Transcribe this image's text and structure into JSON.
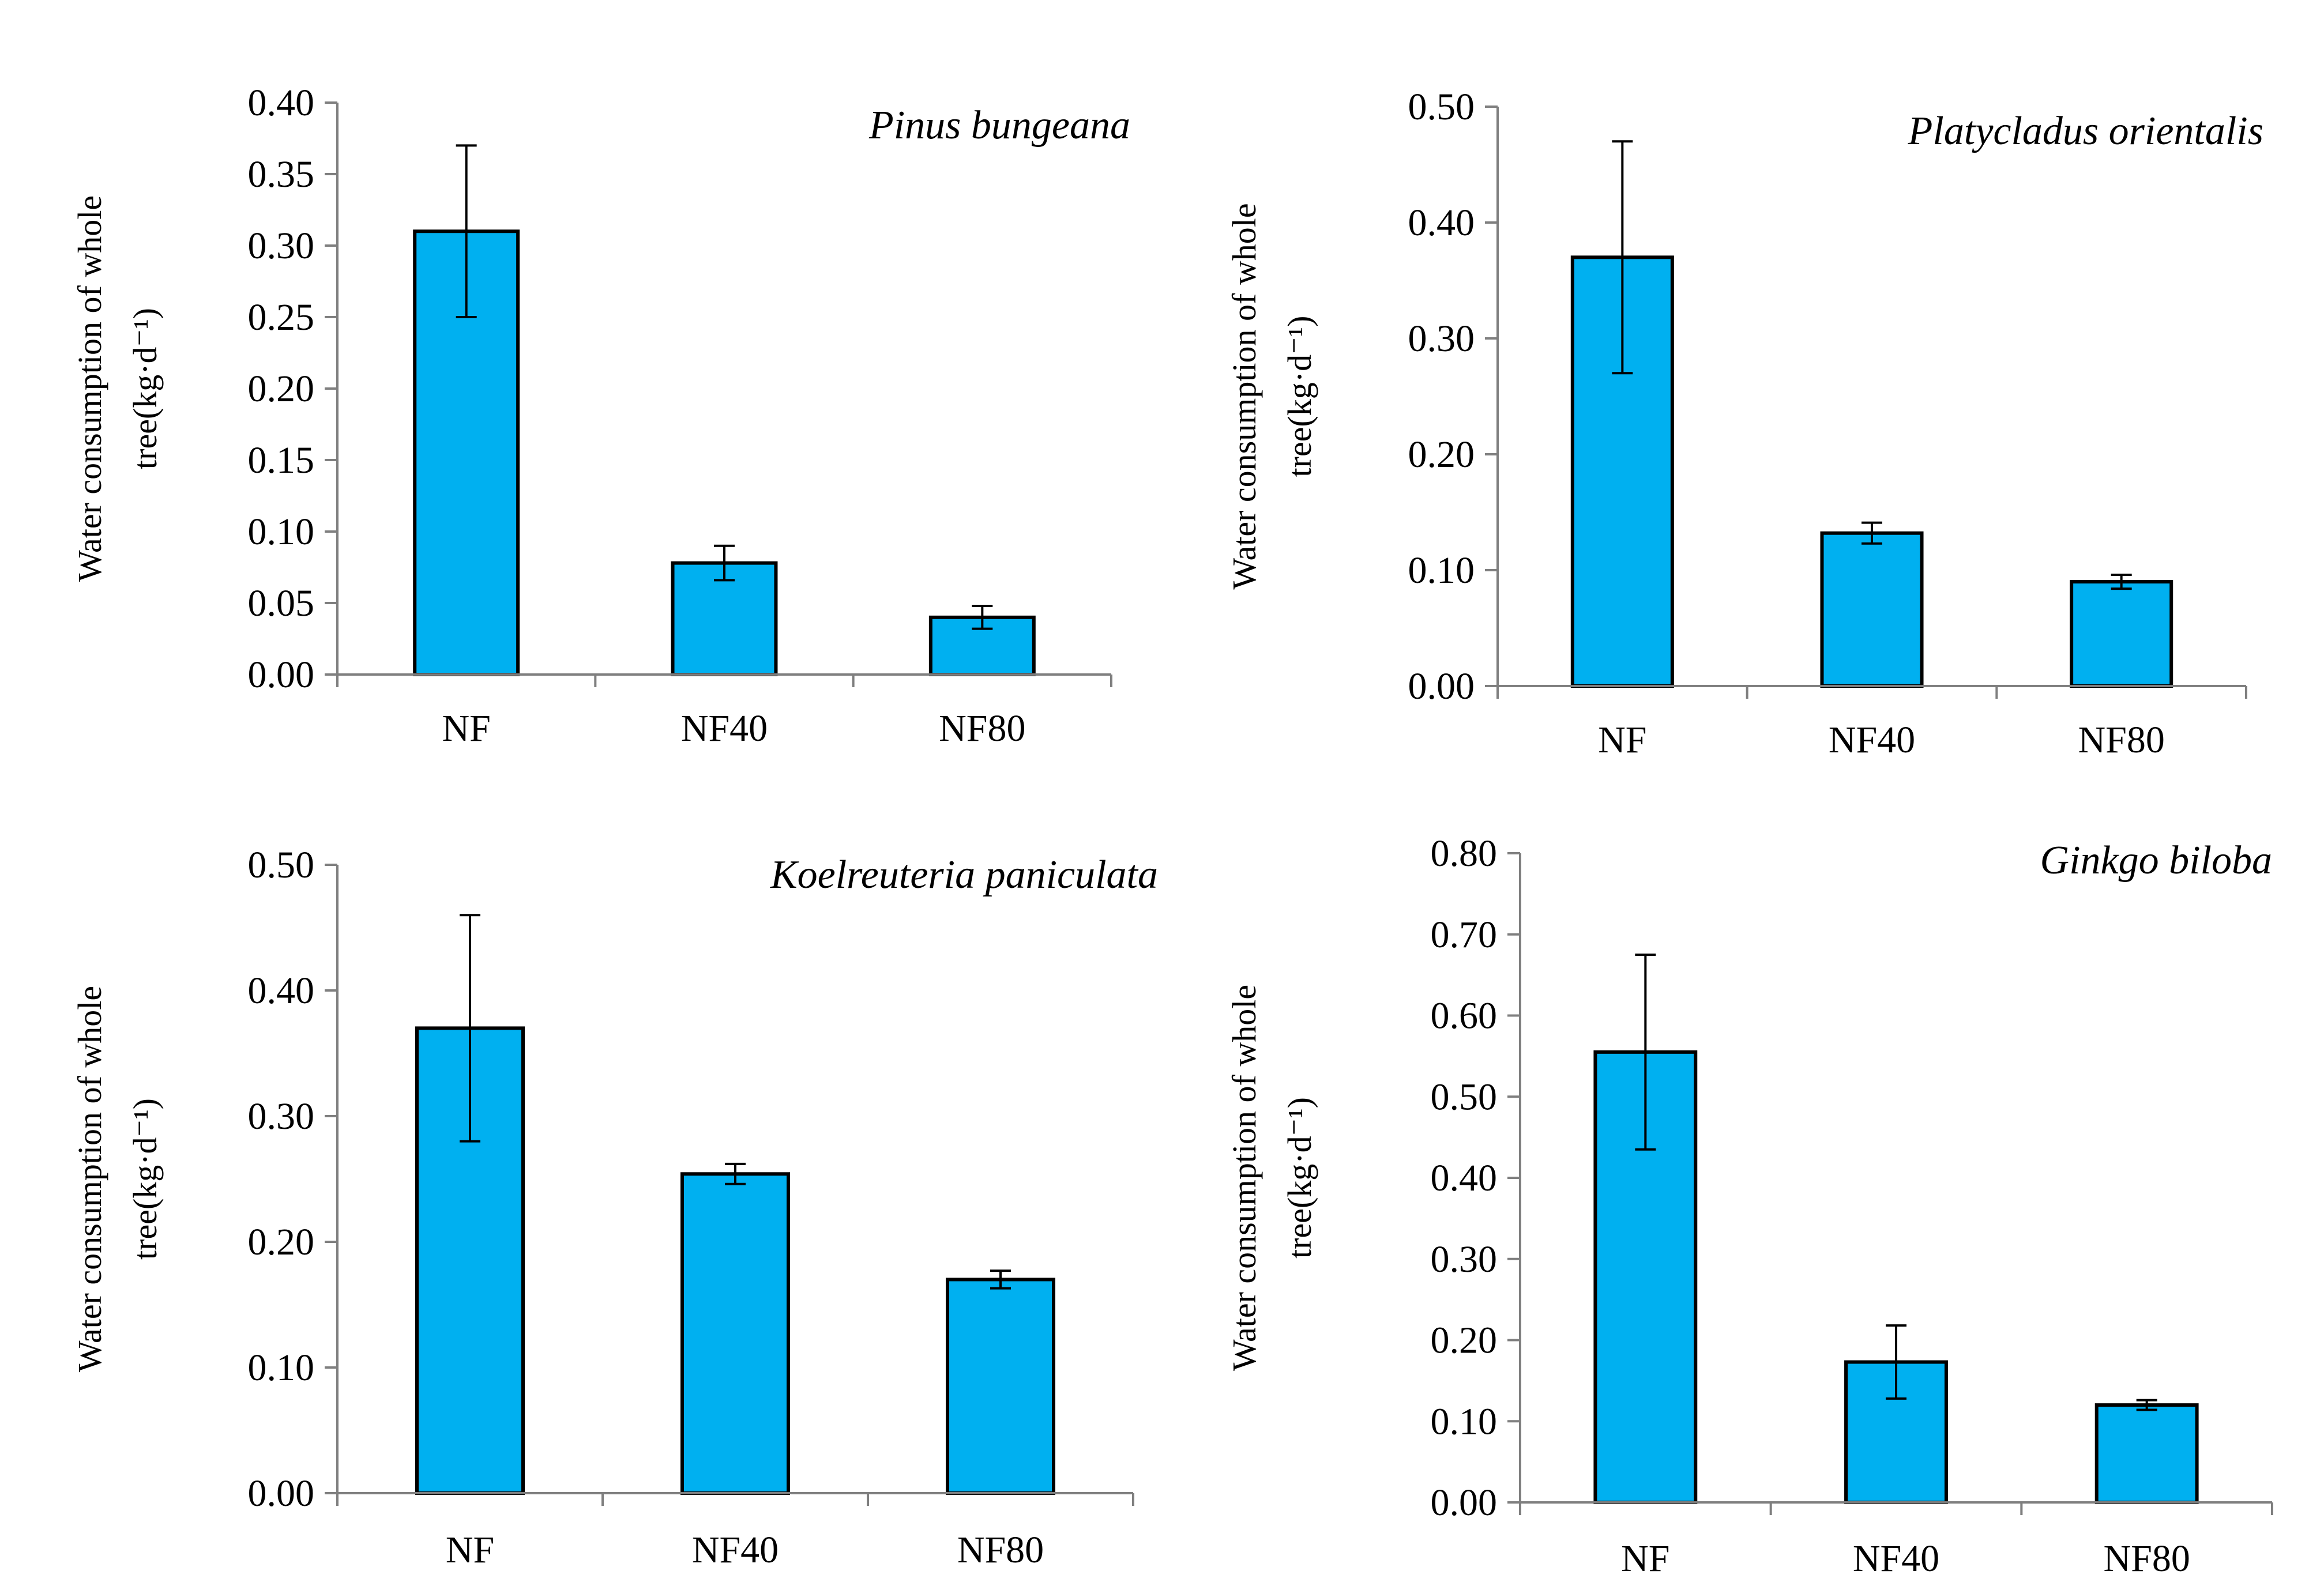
{
  "colors": {
    "bar_fill": "#00b0f0",
    "bar_edge": "#000000",
    "axis": "#7f7f7f"
  },
  "chart_data": [
    {
      "type": "bar",
      "title": "Pinus bungeana",
      "ylabel_line1": "Water consumption of whole",
      "ylabel_line2": "tree(kg·d⁻¹)",
      "categories": [
        "NF",
        "NF40",
        "NF80"
      ],
      "values": [
        0.31,
        0.078,
        0.04
      ],
      "errors": [
        0.06,
        0.012,
        0.008
      ],
      "ylim": [
        0,
        0.4
      ],
      "yticks": [
        0.0,
        0.05,
        0.1,
        0.15,
        0.2,
        0.25,
        0.3,
        0.35,
        0.4
      ],
      "ytick_labels": [
        "0.00",
        "0.05",
        "0.10",
        "0.15",
        "0.20",
        "0.25",
        "0.30",
        "0.35",
        "0.40"
      ]
    },
    {
      "type": "bar",
      "title": "Platycladus orientalis",
      "ylabel_line1": "Water consumption of whole",
      "ylabel_line2": "tree(kg·d⁻¹)",
      "categories": [
        "NF",
        "NF40",
        "NF80"
      ],
      "values": [
        0.37,
        0.132,
        0.09
      ],
      "errors": [
        0.1,
        0.009,
        0.006
      ],
      "ylim": [
        0,
        0.5
      ],
      "yticks": [
        0.0,
        0.1,
        0.2,
        0.3,
        0.4,
        0.5
      ],
      "ytick_labels": [
        "0.00",
        "0.10",
        "0.20",
        "0.30",
        "0.40",
        "0.50"
      ]
    },
    {
      "type": "bar",
      "title": "Koelreuteria paniculata",
      "ylabel_line1": "Water consumption of whole",
      "ylabel_line2": "tree(kg·d⁻¹)",
      "categories": [
        "NF",
        "NF40",
        "NF80"
      ],
      "values": [
        0.37,
        0.254,
        0.17
      ],
      "errors": [
        0.09,
        0.008,
        0.007
      ],
      "ylim": [
        0,
        0.5
      ],
      "yticks": [
        0.0,
        0.1,
        0.2,
        0.3,
        0.4,
        0.5
      ],
      "ytick_labels": [
        "0.00",
        "0.10",
        "0.20",
        "0.30",
        "0.40",
        "0.50"
      ]
    },
    {
      "type": "bar",
      "title": "Ginkgo biloba",
      "ylabel_line1": "Water consumption of whole",
      "ylabel_line2": "tree(kg·d⁻¹)",
      "categories": [
        "NF",
        "NF40",
        "NF80"
      ],
      "values": [
        0.555,
        0.173,
        0.12
      ],
      "errors": [
        0.12,
        0.045,
        0.006
      ],
      "ylim": [
        0,
        0.8
      ],
      "yticks": [
        0.0,
        0.1,
        0.2,
        0.3,
        0.4,
        0.5,
        0.6,
        0.7,
        0.8
      ],
      "ytick_labels": [
        "0.00",
        "0.10",
        "0.20",
        "0.30",
        "0.40",
        "0.50",
        "0.60",
        "0.70",
        "0.80"
      ]
    }
  ]
}
